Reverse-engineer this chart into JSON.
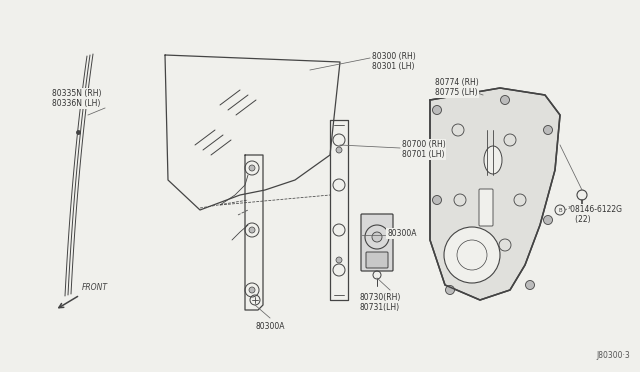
{
  "bg_color": "#f0f0ec",
  "line_color": "#444444",
  "text_color": "#333333",
  "diagram_number": "J80300·3",
  "label_fontsize": 5.5,
  "parts": {
    "seal_label": "80335N (RH)\n80336N (LH)",
    "glass_label": "80300 (RH)\n80301 (LH)",
    "regulator_label": "80700 (RH)\n80701 (LH)",
    "panel_label": "80774 (RH)\n80775 (LH)",
    "bolt_label": "³08146-6122G\n   (22)",
    "motor_bolt_label": "80300A",
    "motor_bolt_label2": "80300A",
    "motor_label": "80730(RH)\n80731(LH)"
  }
}
